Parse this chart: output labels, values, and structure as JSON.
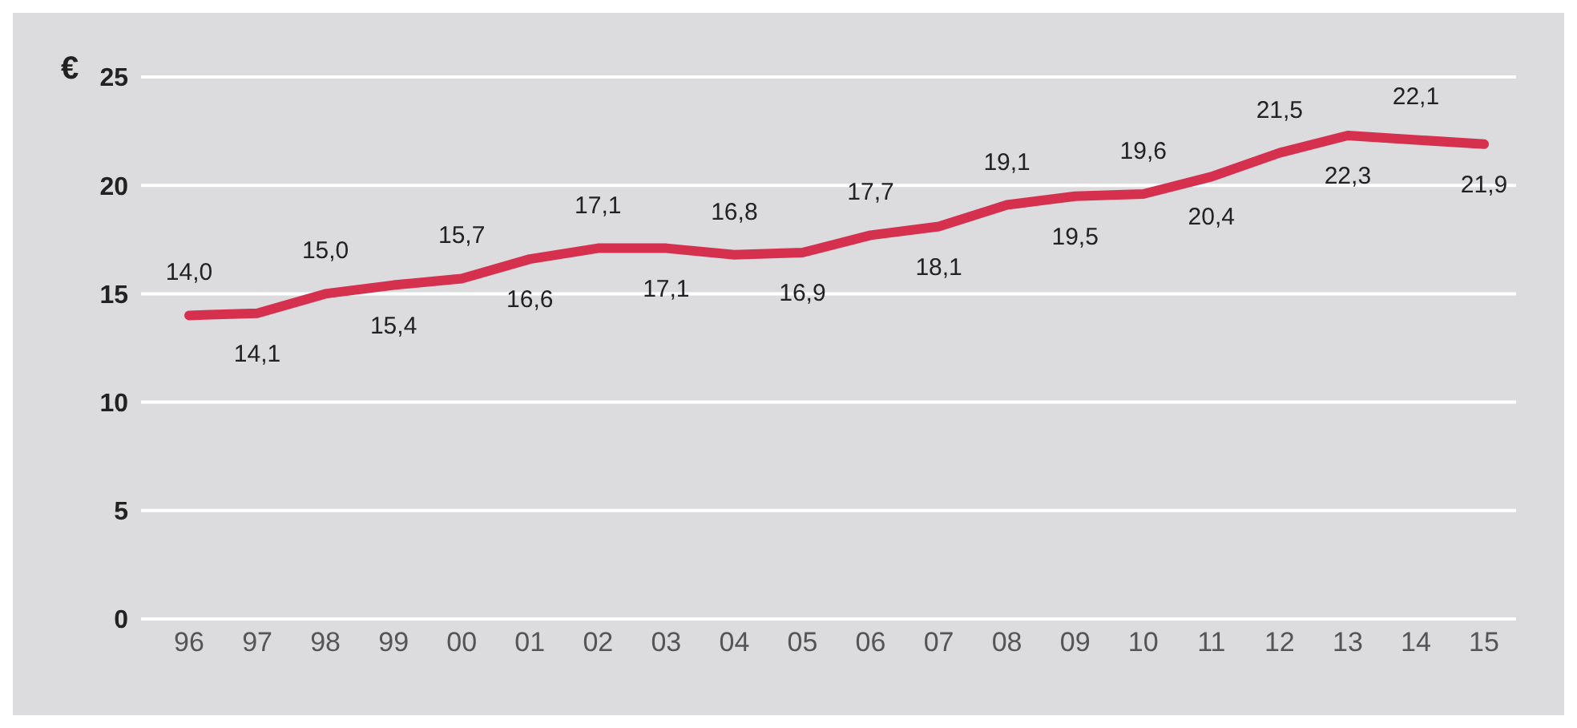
{
  "chart_data": {
    "type": "line",
    "ylabel": "€",
    "categories": [
      "96",
      "97",
      "98",
      "99",
      "00",
      "01",
      "02",
      "03",
      "04",
      "05",
      "06",
      "07",
      "08",
      "09",
      "10",
      "11",
      "12",
      "13",
      "14",
      "15"
    ],
    "series": [
      {
        "color": "#d6304f",
        "values": [
          14.0,
          14.1,
          15.0,
          15.4,
          15.7,
          16.6,
          17.1,
          17.1,
          16.8,
          16.9,
          17.7,
          18.1,
          19.1,
          19.5,
          19.6,
          20.4,
          21.5,
          22.3,
          22.1,
          21.9
        ],
        "value_labels": [
          "14,0",
          "14,1",
          "15,0",
          "15,4",
          "15,7",
          "16,6",
          "17,1",
          "17,1",
          "16,8",
          "16,9",
          "17,7",
          "18,1",
          "19,1",
          "19,5",
          "19,6",
          "20,4",
          "21,5",
          "22,3",
          "22,1",
          "21,9"
        ]
      }
    ],
    "ylim": [
      0,
      25
    ],
    "yticks": [
      0,
      5,
      10,
      15,
      20,
      25
    ],
    "grid": "y",
    "marker": "none",
    "line_style": "solid"
  }
}
